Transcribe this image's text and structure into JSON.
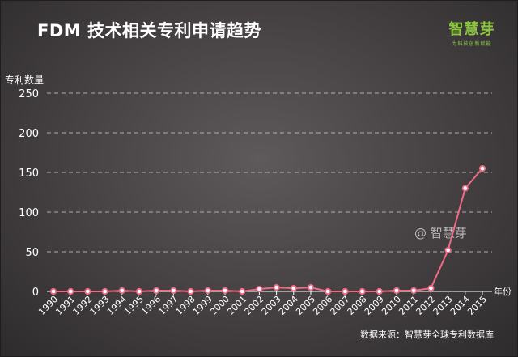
{
  "header": {
    "title": "FDM 技术相关专利申请趋势",
    "logo_main": "智慧芽",
    "logo_sub": "为科技创新赋能"
  },
  "watermark": "@ 智慧芽",
  "source": "数据来源：智慧芽全球专利数据库",
  "colors": {
    "line": "#f06a85",
    "marker_fill": "#ffffff",
    "logo": "#8cc63f"
  },
  "chart_data": {
    "type": "line",
    "ylabel": "专利数量",
    "xlabel": "年份",
    "ylim": [
      0,
      250
    ],
    "yticks": [
      0,
      50,
      100,
      150,
      200,
      250
    ],
    "grid": true,
    "categories": [
      "1990",
      "1991",
      "1992",
      "1993",
      "1994",
      "1995",
      "1996",
      "1997",
      "1998",
      "1999",
      "2000",
      "2001",
      "2002",
      "2003",
      "2004",
      "2005",
      "2006",
      "2007",
      "2008",
      "2009",
      "2010",
      "2011",
      "2012",
      "2013",
      "2014",
      "2015"
    ],
    "series": [
      {
        "values": [
          0,
          0,
          0,
          0,
          1,
          0,
          1,
          1,
          0,
          1,
          1,
          0,
          3,
          5,
          4,
          5,
          0,
          0,
          0,
          0,
          1,
          1,
          4,
          52,
          130,
          155
        ]
      }
    ]
  }
}
